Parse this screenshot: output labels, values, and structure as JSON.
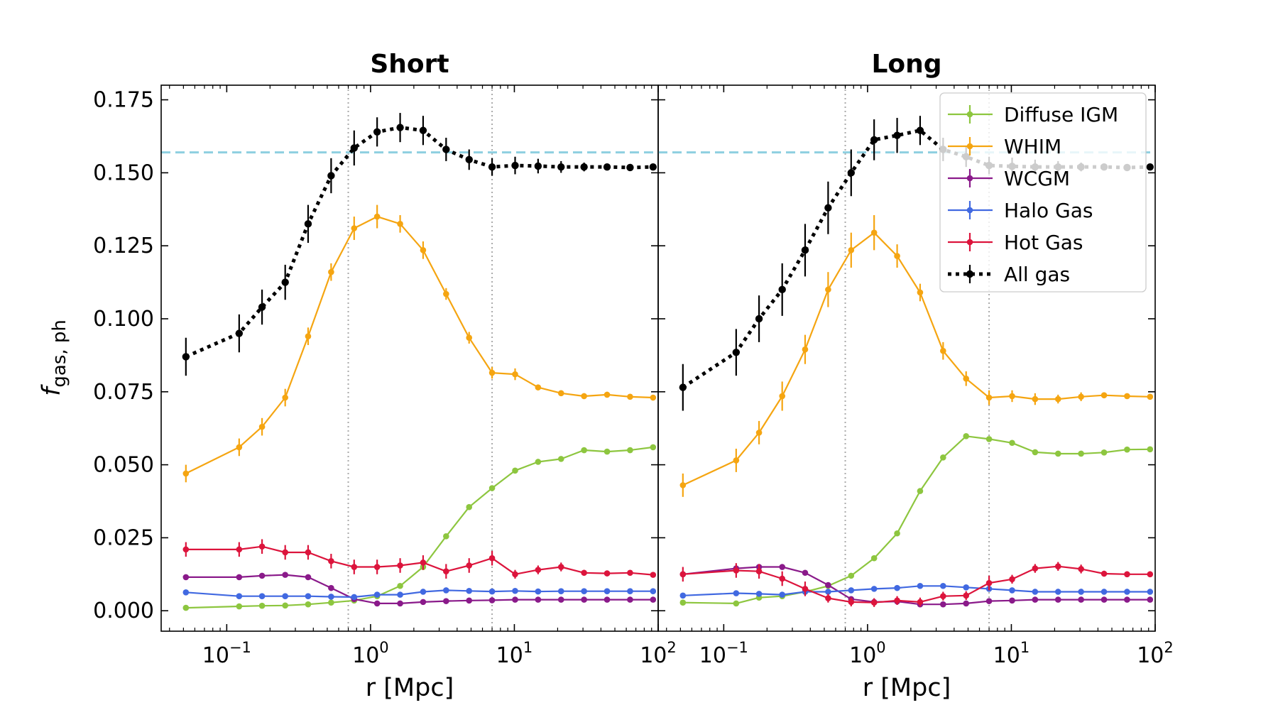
{
  "chart_data": [
    {
      "type": "line",
      "title": "Short",
      "xlabel": "r [Mpc]",
      "ylabel": {
        "main": "f",
        "sub": "gas, ph"
      },
      "xscale": "log",
      "xlim": [
        0.035,
        100
      ],
      "ylim": [
        -0.007,
        0.18
      ],
      "xticks": [
        {
          "base": "10",
          "exp": "−1",
          "value": 0.1
        },
        {
          "base": "10",
          "exp": "0",
          "value": 1
        },
        {
          "base": "10",
          "exp": "1",
          "value": 10
        },
        {
          "base": "10",
          "exp": "2",
          "value": 100
        }
      ],
      "yticks": [
        "0.000",
        "0.025",
        "0.050",
        "0.075",
        "0.100",
        "0.125",
        "0.150",
        "0.175"
      ],
      "ytick_values": [
        0.0,
        0.025,
        0.05,
        0.075,
        0.1,
        0.125,
        0.15,
        0.175
      ],
      "reference_hline": {
        "y": 0.157,
        "style": "dashed",
        "color": "#8ecfe0"
      },
      "reference_vlines": [
        0.7,
        7.0
      ],
      "x": [
        0.052,
        0.122,
        0.176,
        0.255,
        0.368,
        0.532,
        0.769,
        1.111,
        1.606,
        2.32,
        3.353,
        4.846,
        7.0,
        10.12,
        14.62,
        21.13,
        30.53,
        44.13,
        63.77,
        92.16
      ],
      "series": [
        {
          "name": "Diffuse IGM",
          "color": "#8dc63f",
          "style": "solid",
          "values": [
            0.001,
            0.0015,
            0.0017,
            0.0018,
            0.0022,
            0.0028,
            0.0035,
            0.005,
            0.0085,
            0.015,
            0.0255,
            0.0355,
            0.042,
            0.048,
            0.051,
            0.052,
            0.055,
            0.0545,
            0.055,
            0.056
          ],
          "errors": [
            0,
            0,
            0,
            0,
            0,
            0,
            0,
            0,
            0,
            0,
            0,
            0,
            0,
            0,
            0,
            0,
            0,
            0,
            0,
            0
          ]
        },
        {
          "name": "WHIM",
          "color": "#f5a511",
          "style": "solid",
          "values": [
            0.047,
            0.056,
            0.063,
            0.073,
            0.094,
            0.116,
            0.131,
            0.135,
            0.1325,
            0.1235,
            0.1085,
            0.0935,
            0.0815,
            0.081,
            0.0765,
            0.0745,
            0.0735,
            0.074,
            0.0733,
            0.073
          ],
          "errors": [
            0.003,
            0.003,
            0.003,
            0.003,
            0.003,
            0.003,
            0.004,
            0.004,
            0.003,
            0.003,
            0.002,
            0.002,
            0.002,
            0.002,
            0.001,
            0.001,
            0.001,
            0.001,
            0.0005,
            0.0005
          ]
        },
        {
          "name": "WCGM",
          "color": "#8a1a8a",
          "style": "solid",
          "values": [
            0.0115,
            0.0115,
            0.012,
            0.0123,
            0.0115,
            0.0078,
            0.004,
            0.0025,
            0.0025,
            0.003,
            0.0033,
            0.0035,
            0.0036,
            0.0038,
            0.0038,
            0.0038,
            0.0038,
            0.0038,
            0.0038,
            0.0038
          ],
          "errors": [
            0,
            0,
            0,
            0,
            0,
            0,
            0,
            0,
            0,
            0,
            0,
            0,
            0,
            0,
            0,
            0,
            0,
            0,
            0,
            0
          ]
        },
        {
          "name": "Halo Gas",
          "color": "#4169e1",
          "style": "solid",
          "values": [
            0.0063,
            0.005,
            0.005,
            0.005,
            0.005,
            0.0048,
            0.0047,
            0.0055,
            0.0055,
            0.0065,
            0.007,
            0.0068,
            0.0066,
            0.0068,
            0.0066,
            0.0067,
            0.0067,
            0.0067,
            0.0067,
            0.0067
          ],
          "errors": [
            0,
            0,
            0,
            0,
            0,
            0,
            0,
            0,
            0,
            0,
            0,
            0,
            0,
            0,
            0,
            0,
            0,
            0,
            0,
            0
          ]
        },
        {
          "name": "Hot Gas",
          "color": "#dc143c",
          "style": "solid",
          "values": [
            0.021,
            0.021,
            0.022,
            0.02,
            0.02,
            0.017,
            0.015,
            0.015,
            0.0155,
            0.0165,
            0.0135,
            0.0155,
            0.018,
            0.0125,
            0.014,
            0.015,
            0.013,
            0.0128,
            0.013,
            0.0123
          ],
          "errors": [
            0.0025,
            0.0025,
            0.0025,
            0.0025,
            0.0025,
            0.0025,
            0.0025,
            0.0025,
            0.0025,
            0.0025,
            0.0025,
            0.0025,
            0.0025,
            0.0015,
            0.0015,
            0.0015,
            0.001,
            0.001,
            0.0008,
            0.0008
          ]
        },
        {
          "name": "All gas",
          "color": "#000000",
          "style": "dotted",
          "values": [
            0.087,
            0.095,
            0.104,
            0.1125,
            0.1325,
            0.149,
            0.1585,
            0.164,
            0.1655,
            0.1645,
            0.158,
            0.1545,
            0.152,
            0.1525,
            0.1523,
            0.152,
            0.152,
            0.152,
            0.1518,
            0.152
          ],
          "errors": [
            0.0065,
            0.0065,
            0.006,
            0.006,
            0.0065,
            0.006,
            0.006,
            0.005,
            0.005,
            0.005,
            0.004,
            0.0035,
            0.003,
            0.003,
            0.0025,
            0.002,
            0.0015,
            0.001,
            0.001,
            0.001
          ]
        }
      ]
    },
    {
      "type": "line",
      "title": "Long",
      "xlabel": "r [Mpc]",
      "xscale": "log",
      "xlim": [
        0.035,
        100
      ],
      "ylim": [
        -0.007,
        0.18
      ],
      "xticks": [
        {
          "base": "10",
          "exp": "−1",
          "value": 0.1
        },
        {
          "base": "10",
          "exp": "0",
          "value": 1
        },
        {
          "base": "10",
          "exp": "1",
          "value": 10
        },
        {
          "base": "10",
          "exp": "2",
          "value": 100
        }
      ],
      "ytick_values": [
        0.0,
        0.025,
        0.05,
        0.075,
        0.1,
        0.125,
        0.15,
        0.175
      ],
      "reference_hline": {
        "y": 0.157,
        "style": "dashed",
        "color": "#8ecfe0"
      },
      "reference_vlines": [
        0.7,
        7.0
      ],
      "legend": {
        "placement": "top-right",
        "entries": [
          "Diffuse IGM",
          "WHIM",
          "WCGM",
          "Halo Gas",
          "Hot Gas",
          "All gas"
        ]
      },
      "x": [
        0.052,
        0.122,
        0.176,
        0.255,
        0.368,
        0.532,
        0.769,
        1.111,
        1.606,
        2.32,
        3.353,
        4.846,
        7.0,
        10.12,
        14.62,
        21.13,
        30.53,
        44.13,
        63.77,
        92.16
      ],
      "series": [
        {
          "name": "Diffuse IGM",
          "color": "#8dc63f",
          "style": "solid",
          "values": [
            0.0028,
            0.0025,
            0.0045,
            0.005,
            0.0065,
            0.0085,
            0.012,
            0.018,
            0.0265,
            0.041,
            0.0525,
            0.0598,
            0.0588,
            0.0575,
            0.0543,
            0.0538,
            0.0538,
            0.0542,
            0.0552,
            0.0553
          ],
          "errors": [
            0,
            0,
            0,
            0,
            0,
            0,
            0,
            0,
            0,
            0,
            0,
            0,
            0,
            0,
            0,
            0,
            0,
            0,
            0,
            0
          ]
        },
        {
          "name": "WHIM",
          "color": "#f5a511",
          "style": "solid",
          "values": [
            0.043,
            0.0515,
            0.061,
            0.0735,
            0.0895,
            0.11,
            0.1235,
            0.1295,
            0.1215,
            0.109,
            0.089,
            0.0795,
            0.073,
            0.0735,
            0.0725,
            0.0725,
            0.0733,
            0.0738,
            0.0735,
            0.0733
          ],
          "errors": [
            0.004,
            0.004,
            0.004,
            0.005,
            0.005,
            0.006,
            0.006,
            0.006,
            0.004,
            0.003,
            0.003,
            0.0025,
            0.0025,
            0.002,
            0.002,
            0.0015,
            0.0015,
            0.001,
            0.0008,
            0.0008
          ]
        },
        {
          "name": "WCGM",
          "color": "#8a1a8a",
          "style": "solid",
          "values": [
            0.0125,
            0.0145,
            0.015,
            0.015,
            0.013,
            0.0088,
            0.004,
            0.003,
            0.0032,
            0.0022,
            0.0022,
            0.0025,
            0.0033,
            0.0035,
            0.0038,
            0.0038,
            0.0038,
            0.0038,
            0.0038,
            0.0038
          ],
          "errors": [
            0,
            0,
            0,
            0,
            0,
            0,
            0,
            0,
            0,
            0,
            0,
            0,
            0,
            0,
            0,
            0,
            0,
            0,
            0,
            0
          ]
        },
        {
          "name": "Halo Gas",
          "color": "#4169e1",
          "style": "solid",
          "values": [
            0.0052,
            0.006,
            0.0058,
            0.0055,
            0.0065,
            0.0065,
            0.007,
            0.0075,
            0.0078,
            0.0085,
            0.0085,
            0.008,
            0.0075,
            0.007,
            0.0065,
            0.0065,
            0.0065,
            0.0065,
            0.0065,
            0.0065
          ],
          "errors": [
            0,
            0,
            0,
            0,
            0,
            0,
            0,
            0,
            0,
            0,
            0,
            0,
            0,
            0,
            0,
            0,
            0,
            0,
            0,
            0
          ]
        },
        {
          "name": "Hot Gas",
          "color": "#dc143c",
          "style": "solid",
          "values": [
            0.0125,
            0.0138,
            0.0135,
            0.011,
            0.0075,
            0.0043,
            0.003,
            0.0028,
            0.0035,
            0.003,
            0.005,
            0.0052,
            0.0095,
            0.0108,
            0.0145,
            0.0152,
            0.0143,
            0.0127,
            0.0125,
            0.0125
          ],
          "errors": [
            0.0025,
            0.0025,
            0.0025,
            0.0025,
            0.0025,
            0.0015,
            0.0015,
            0.0015,
            0.0015,
            0.0015,
            0.0015,
            0.0015,
            0.0025,
            0.0015,
            0.0015,
            0.0015,
            0.0015,
            0.001,
            0.001,
            0.001
          ]
        },
        {
          "name": "All gas",
          "color": "#000000",
          "style": "dotted",
          "values": [
            0.0765,
            0.0885,
            0.1,
            0.11,
            0.1235,
            0.138,
            0.15,
            0.1613,
            0.1628,
            0.1645,
            0.158,
            0.1555,
            0.1525,
            0.1522,
            0.152,
            0.152,
            0.152,
            0.152,
            0.1518,
            0.152
          ],
          "errors": [
            0.008,
            0.008,
            0.008,
            0.009,
            0.009,
            0.009,
            0.008,
            0.007,
            0.006,
            0.005,
            0.004,
            0.0035,
            0.003,
            0.003,
            0.0025,
            0.002,
            0.0015,
            0.001,
            0.001,
            0.001
          ]
        }
      ]
    }
  ]
}
